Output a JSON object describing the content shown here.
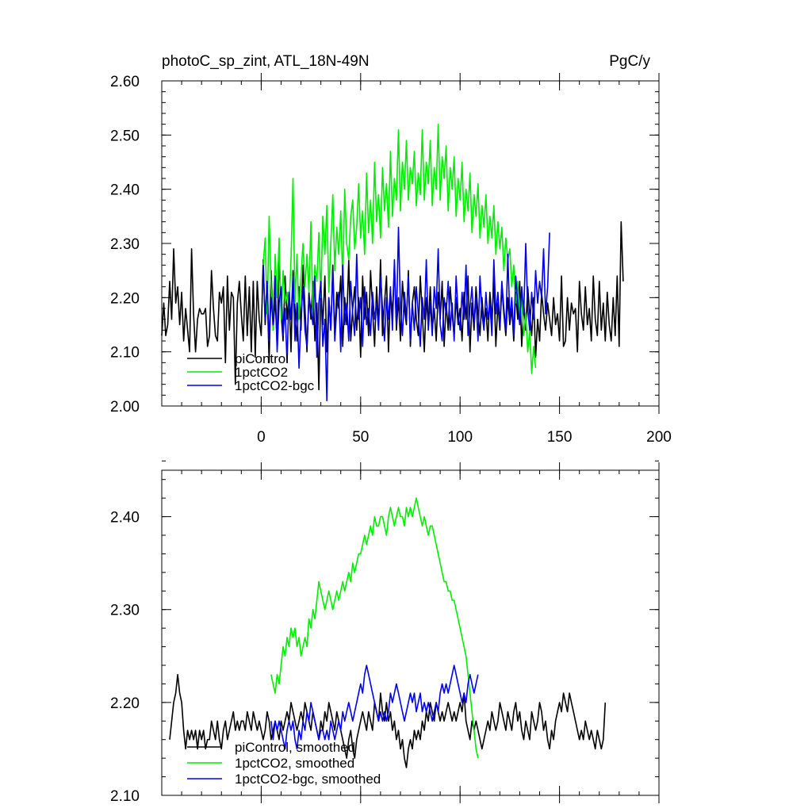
{
  "chart_data": [
    {
      "type": "line",
      "title": "photoC_sp_zint, ATL_18N-49N",
      "units": "PgC/y",
      "xlabel": "",
      "ylabel": "",
      "xlim": [
        -50,
        200
      ],
      "ylim": [
        2.0,
        2.6
      ],
      "x_ticks": [
        0,
        50,
        100,
        150,
        200
      ],
      "y_ticks": [
        2.0,
        2.1,
        2.2,
        2.3,
        2.4,
        2.5,
        2.6
      ],
      "y_tick_labels": [
        "2.00",
        "2.10",
        "2.20",
        "2.30",
        "2.40",
        "2.50",
        "2.60"
      ],
      "legend_position": "bottom-left",
      "series": [
        {
          "name": "piControl",
          "color": "#000000",
          "x_start": -50,
          "values": [
            2.13,
            2.19,
            2.13,
            2.15,
            2.23,
            2.16,
            2.29,
            2.19,
            2.22,
            2.15,
            2.21,
            2.12,
            2.18,
            2.14,
            2.1,
            2.29,
            2.17,
            2.1,
            2.16,
            2.18,
            2.17,
            2.17,
            2.18,
            2.11,
            2.13,
            2.25,
            2.18,
            2.13,
            2.12,
            2.21,
            2.19,
            2.22,
            2.08,
            2.24,
            2.14,
            2.21,
            2.2,
            2.04,
            2.19,
            2.23,
            2.17,
            2.12,
            2.24,
            2.13,
            2.22,
            2.1,
            2.23,
            2.09,
            2.23,
            2.16,
            2.13,
            2.27,
            2.15,
            2.22,
            2.08,
            2.25,
            2.14,
            2.2,
            2.11,
            2.28,
            2.17,
            2.12,
            2.24,
            2.16,
            2.21,
            2.1,
            2.25,
            2.18,
            2.12,
            2.22,
            2.14,
            2.26,
            2.18,
            2.1,
            2.21,
            2.16,
            2.23,
            2.12,
            2.19,
            2.03,
            2.22,
            2.15,
            2.24,
            2.1,
            2.2,
            2.14,
            2.26,
            2.13,
            2.21,
            2.18,
            2.24,
            2.11,
            2.2,
            2.15,
            2.27,
            2.12,
            2.18,
            2.22,
            2.14,
            2.2,
            2.09,
            2.24,
            2.16,
            2.21,
            2.13,
            2.25,
            2.18,
            2.11,
            2.22,
            2.15,
            2.27,
            2.13,
            2.19,
            2.24,
            2.1,
            2.21,
            2.17,
            2.26,
            2.14,
            2.2,
            2.12,
            2.23,
            2.18,
            2.15,
            2.25,
            2.11,
            2.19,
            2.22,
            2.16,
            2.13,
            2.24,
            2.17,
            2.1,
            2.2,
            2.15,
            2.22,
            2.14,
            2.18,
            2.12,
            2.21,
            2.16,
            2.23,
            2.11,
            2.19,
            2.14,
            2.22,
            2.17,
            2.13,
            2.2,
            2.15,
            2.18,
            2.12,
            2.21,
            2.16,
            2.24,
            2.1,
            2.19,
            2.14,
            2.22,
            2.17,
            2.13,
            2.2,
            2.15,
            2.18,
            2.12,
            2.21,
            2.16,
            2.23,
            2.11,
            2.19,
            2.14,
            2.22,
            2.17,
            2.13,
            2.2,
            2.15,
            2.18,
            2.12,
            2.21,
            2.16,
            2.23,
            2.11,
            2.19,
            2.14,
            2.22,
            2.17,
            2.13,
            2.2,
            2.09,
            2.16,
            2.12,
            2.21,
            2.17,
            2.14,
            2.19,
            2.16,
            2.13,
            2.2,
            2.15,
            2.17,
            2.12,
            2.24,
            2.11,
            2.12,
            2.2,
            2.14,
            2.19,
            2.17,
            2.18,
            2.1,
            2.23,
            2.17,
            2.14,
            2.22,
            2.15,
            2.18,
            2.12,
            2.24,
            2.16,
            2.13,
            2.23,
            2.14,
            2.19,
            2.12,
            2.21,
            2.15,
            2.12,
            2.2,
            2.13,
            2.24,
            2.11,
            2.34,
            2.23
          ]
        },
        {
          "name": "1pctCO2",
          "color": "#00ee00",
          "x_start": 1,
          "values": [
            2.26,
            2.31,
            2.17,
            2.35,
            2.22,
            2.14,
            2.28,
            2.2,
            2.31,
            2.16,
            2.25,
            2.19,
            2.21,
            2.18,
            2.27,
            2.42,
            2.19,
            2.28,
            2.16,
            2.24,
            2.3,
            2.22,
            2.28,
            2.21,
            2.34,
            2.17,
            2.26,
            2.23,
            2.32,
            2.2,
            2.35,
            2.28,
            2.37,
            2.21,
            2.3,
            2.39,
            2.25,
            2.33,
            2.28,
            2.36,
            2.23,
            2.4,
            2.3,
            2.27,
            2.35,
            2.38,
            2.29,
            2.33,
            2.41,
            2.31,
            2.36,
            2.28,
            2.43,
            2.32,
            2.38,
            2.3,
            2.45,
            2.34,
            2.39,
            2.31,
            2.44,
            2.36,
            2.41,
            2.33,
            2.47,
            2.35,
            2.42,
            2.38,
            2.51,
            2.36,
            2.45,
            2.4,
            2.49,
            2.38,
            2.44,
            2.41,
            2.47,
            2.37,
            2.43,
            2.39,
            2.51,
            2.38,
            2.45,
            2.41,
            2.49,
            2.37,
            2.44,
            2.4,
            2.52,
            2.38,
            2.46,
            2.42,
            2.48,
            2.36,
            2.44,
            2.4,
            2.46,
            2.35,
            2.42,
            2.38,
            2.45,
            2.34,
            2.4,
            2.36,
            2.43,
            2.32,
            2.39,
            2.35,
            2.41,
            2.31,
            2.37,
            2.33,
            2.39,
            2.3,
            2.35,
            2.31,
            2.37,
            2.28,
            2.34,
            2.29,
            2.33,
            2.25,
            2.31,
            2.27,
            2.29,
            2.22,
            2.26,
            2.19,
            2.23,
            2.16,
            2.2,
            2.13,
            2.17,
            2.1,
            2.14,
            2.06,
            2.11,
            2.07
          ]
        },
        {
          "name": "1pctCO2-bgc",
          "color": "#0000ee",
          "x_start": 1,
          "values": [
            2.26,
            2.16,
            2.23,
            2.12,
            2.2,
            2.15,
            2.24,
            2.1,
            2.19,
            2.22,
            2.13,
            2.18,
            2.08,
            2.21,
            2.16,
            2.24,
            2.12,
            2.19,
            2.07,
            2.17,
            2.22,
            2.14,
            2.11,
            2.2,
            2.18,
            2.15,
            2.24,
            2.09,
            2.19,
            2.23,
            2.11,
            2.16,
            2.01,
            2.2,
            2.14,
            2.25,
            2.12,
            2.18,
            2.21,
            2.1,
            2.26,
            2.15,
            2.19,
            2.12,
            2.23,
            2.17,
            2.13,
            2.28,
            2.16,
            2.2,
            2.11,
            2.22,
            2.15,
            2.18,
            2.13,
            2.21,
            2.16,
            2.19,
            2.14,
            2.24,
            2.18,
            2.12,
            2.2,
            2.16,
            2.22,
            2.14,
            2.27,
            2.15,
            2.33,
            2.18,
            2.13,
            2.21,
            2.16,
            2.24,
            2.12,
            2.19,
            2.14,
            2.22,
            2.17,
            2.11,
            2.2,
            2.16,
            2.27,
            2.14,
            2.19,
            2.13,
            2.22,
            2.18,
            2.29,
            2.15,
            2.12,
            2.2,
            2.17,
            2.23,
            2.14,
            2.19,
            2.12,
            2.24,
            2.17,
            2.14,
            2.21,
            2.16,
            2.26,
            2.13,
            2.18,
            2.22,
            2.15,
            2.2,
            2.12,
            2.24,
            2.17,
            2.14,
            2.21,
            2.16,
            2.19,
            2.13,
            2.27,
            2.17,
            2.21,
            2.15,
            2.23,
            2.18,
            2.14,
            2.28,
            2.16,
            2.2,
            2.13,
            2.24,
            2.19,
            2.15,
            2.22,
            2.17,
            2.3,
            2.18,
            2.14,
            2.21,
            2.16,
            2.25,
            2.19,
            2.23,
            2.2,
            2.29,
            2.17,
            2.22,
            2.32
          ]
        }
      ]
    },
    {
      "type": "line",
      "title": "",
      "units": "",
      "xlabel": "",
      "ylabel": "",
      "xlim": [
        -50,
        200
      ],
      "ylim": [
        2.1,
        2.45
      ],
      "x_ticks": [
        0,
        50,
        100,
        150,
        200
      ],
      "y_ticks": [
        2.1,
        2.2,
        2.3,
        2.4
      ],
      "y_tick_labels": [
        "2.10",
        "2.20",
        "2.30",
        "2.40"
      ],
      "legend_position": "bottom-left",
      "series": [
        {
          "name": "piControl, smoothed",
          "color": "#000000",
          "x_start": -46,
          "values": [
            2.16,
            2.18,
            2.2,
            2.21,
            2.23,
            2.21,
            2.2,
            2.17,
            2.15,
            2.17,
            2.16,
            2.17,
            2.16,
            2.17,
            2.15,
            2.17,
            2.16,
            2.17,
            2.15,
            2.16,
            2.16,
            2.18,
            2.17,
            2.16,
            2.18,
            2.16,
            2.15,
            2.17,
            2.18,
            2.16,
            2.17,
            2.18,
            2.19,
            2.17,
            2.18,
            2.17,
            2.18,
            2.18,
            2.17,
            2.19,
            2.18,
            2.17,
            2.19,
            2.18,
            2.17,
            2.18,
            2.17,
            2.16,
            2.17,
            2.19,
            2.18,
            2.16,
            2.17,
            2.18,
            2.17,
            2.16,
            2.18,
            2.17,
            2.18,
            2.19,
            2.18,
            2.2,
            2.19,
            2.18,
            2.17,
            2.18,
            2.19,
            2.18,
            2.2,
            2.19,
            2.18,
            2.17,
            2.19,
            2.18,
            2.17,
            2.16,
            2.18,
            2.17,
            2.19,
            2.18,
            2.2,
            2.19,
            2.18,
            2.17,
            2.19,
            2.18,
            2.17,
            2.16,
            2.15,
            2.14,
            2.16,
            2.17,
            2.15,
            2.14,
            2.16,
            2.17,
            2.18,
            2.19,
            2.18,
            2.17,
            2.19,
            2.18,
            2.17,
            2.2,
            2.19,
            2.18,
            2.21,
            2.19,
            2.18,
            2.2,
            2.18,
            2.19,
            2.17,
            2.18,
            2.16,
            2.17,
            2.15,
            2.16,
            2.14,
            2.13,
            2.15,
            2.16,
            2.15,
            2.17,
            2.16,
            2.17,
            2.16,
            2.18,
            2.17,
            2.19,
            2.18,
            2.2,
            2.19,
            2.18,
            2.2,
            2.19,
            2.18,
            2.19,
            2.18,
            2.19,
            2.2,
            2.19,
            2.18,
            2.19,
            2.18,
            2.19,
            2.2,
            2.19,
            2.21,
            2.18,
            2.17,
            2.16,
            2.18,
            2.17,
            2.18,
            2.17,
            2.16,
            2.15,
            2.16,
            2.17,
            2.18,
            2.17,
            2.19,
            2.18,
            2.17,
            2.18,
            2.2,
            2.19,
            2.18,
            2.17,
            2.19,
            2.18,
            2.17,
            2.19,
            2.2,
            2.18,
            2.19,
            2.17,
            2.16,
            2.18,
            2.17,
            2.16,
            2.19,
            2.18,
            2.17,
            2.18,
            2.2,
            2.19,
            2.17,
            2.18,
            2.16,
            2.15,
            2.17,
            2.16,
            2.18,
            2.19,
            2.2,
            2.19,
            2.21,
            2.2,
            2.19,
            2.21,
            2.2,
            2.19,
            2.18,
            2.17,
            2.16,
            2.17,
            2.16,
            2.18,
            2.17,
            2.16,
            2.17,
            2.16,
            2.15,
            2.17,
            2.16,
            2.15,
            2.16,
            2.2
          ]
        },
        {
          "name": "1pctCO2, smoothed",
          "color": "#00ee00",
          "x_start": 5,
          "values": [
            2.23,
            2.22,
            2.21,
            2.23,
            2.22,
            2.24,
            2.26,
            2.25,
            2.27,
            2.26,
            2.28,
            2.27,
            2.28,
            2.26,
            2.27,
            2.25,
            2.26,
            2.27,
            2.26,
            2.29,
            2.28,
            2.3,
            2.29,
            2.31,
            2.33,
            2.32,
            2.31,
            2.3,
            2.31,
            2.32,
            2.31,
            2.3,
            2.31,
            2.32,
            2.31,
            2.32,
            2.33,
            2.32,
            2.33,
            2.34,
            2.33,
            2.35,
            2.34,
            2.35,
            2.36,
            2.36,
            2.37,
            2.38,
            2.37,
            2.38,
            2.39,
            2.38,
            2.4,
            2.39,
            2.39,
            2.4,
            2.4,
            2.39,
            2.38,
            2.4,
            2.41,
            2.4,
            2.39,
            2.4,
            2.41,
            2.4,
            2.4,
            2.39,
            2.41,
            2.4,
            2.41,
            2.4,
            2.41,
            2.42,
            2.41,
            2.4,
            2.39,
            2.4,
            2.39,
            2.38,
            2.39,
            2.39,
            2.38,
            2.37,
            2.36,
            2.35,
            2.34,
            2.33,
            2.33,
            2.32,
            2.32,
            2.31,
            2.31,
            2.3,
            2.29,
            2.28,
            2.27,
            2.26,
            2.25,
            2.23,
            2.21,
            2.19,
            2.17,
            2.15,
            2.14
          ]
        },
        {
          "name": "1pctCO2-bgc, smoothed",
          "color": "#0000ee",
          "x_start": 5,
          "values": [
            2.18,
            2.16,
            2.18,
            2.17,
            2.18,
            2.17,
            2.16,
            2.15,
            2.17,
            2.18,
            2.17,
            2.18,
            2.16,
            2.15,
            2.17,
            2.16,
            2.18,
            2.17,
            2.19,
            2.18,
            2.2,
            2.19,
            2.18,
            2.17,
            2.16,
            2.17,
            2.17,
            2.16,
            2.17,
            2.16,
            2.18,
            2.17,
            2.16,
            2.17,
            2.18,
            2.17,
            2.19,
            2.18,
            2.19,
            2.2,
            2.19,
            2.18,
            2.19,
            2.2,
            2.21,
            2.22,
            2.21,
            2.23,
            2.24,
            2.23,
            2.22,
            2.21,
            2.2,
            2.19,
            2.18,
            2.19,
            2.18,
            2.19,
            2.18,
            2.19,
            2.21,
            2.2,
            2.21,
            2.22,
            2.21,
            2.2,
            2.19,
            2.18,
            2.19,
            2.2,
            2.21,
            2.2,
            2.21,
            2.19,
            2.2,
            2.21,
            2.19,
            2.2,
            2.19,
            2.2,
            2.19,
            2.18,
            2.19,
            2.2,
            2.19,
            2.21,
            2.22,
            2.21,
            2.22,
            2.21,
            2.22,
            2.23,
            2.24,
            2.23,
            2.22,
            2.21,
            2.2,
            2.21,
            2.2,
            2.22,
            2.23,
            2.22,
            2.21,
            2.22,
            2.23
          ]
        }
      ]
    }
  ]
}
